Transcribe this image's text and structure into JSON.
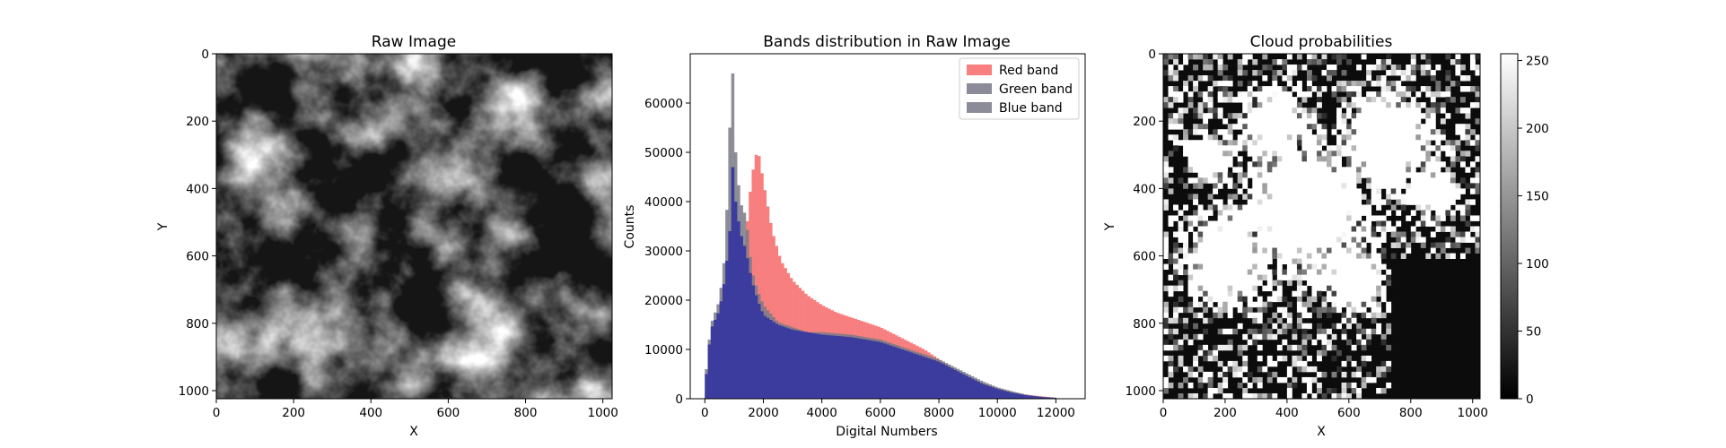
{
  "chart_data": [
    {
      "type": "heatmap",
      "title": "Raw Image",
      "xlabel": "X",
      "ylabel": "Y",
      "xlim": [
        0,
        1024
      ],
      "ylim": [
        1024,
        0
      ],
      "xticks": [
        "0",
        "200",
        "400",
        "600",
        "800",
        "1000"
      ],
      "yticks": [
        "0",
        "200",
        "400",
        "600",
        "800",
        "1000"
      ],
      "colormap": "gray",
      "grid": false
    },
    {
      "type": "bar",
      "title": "Bands distribution in Raw Image",
      "xlabel": "Digital Numbers",
      "ylabel": "Counts",
      "xlim": [
        -500,
        13000
      ],
      "ylim": [
        0,
        70000
      ],
      "xticks": [
        "0",
        "2000",
        "4000",
        "6000",
        "8000",
        "10000",
        "12000"
      ],
      "yticks": [
        "0",
        "10000",
        "20000",
        "30000",
        "40000",
        "50000",
        "60000"
      ],
      "legend_position": "top-right",
      "grid": false,
      "series": [
        {
          "name": "Red band",
          "color": "#f87f7f",
          "points": [
            [
              0,
              0
            ],
            [
              300,
              8000
            ],
            [
              600,
              17000
            ],
            [
              900,
              20000
            ],
            [
              1200,
              26000
            ],
            [
              1400,
              33000
            ],
            [
              1600,
              45000
            ],
            [
              1800,
              51000
            ],
            [
              2000,
              44000
            ],
            [
              2300,
              34000
            ],
            [
              2600,
              28000
            ],
            [
              3000,
              24000
            ],
            [
              3500,
              21000
            ],
            [
              4000,
              19000
            ],
            [
              4500,
              17500
            ],
            [
              5000,
              16500
            ],
            [
              5500,
              15500
            ],
            [
              6000,
              14500
            ],
            [
              6500,
              13000
            ],
            [
              7000,
              11500
            ],
            [
              7500,
              10000
            ],
            [
              8000,
              8000
            ],
            [
              8500,
              6000
            ],
            [
              9000,
              4500
            ],
            [
              9500,
              3000
            ],
            [
              10000,
              2000
            ],
            [
              10500,
              1300
            ],
            [
              11000,
              800
            ],
            [
              11500,
              500
            ],
            [
              12000,
              200
            ]
          ]
        },
        {
          "name": "Green band",
          "color": "#8c8c98",
          "points": [
            [
              0,
              3000
            ],
            [
              200,
              15000
            ],
            [
              500,
              20000
            ],
            [
              700,
              30000
            ],
            [
              850,
              55000
            ],
            [
              950,
              66000
            ],
            [
              1050,
              50000
            ],
            [
              1200,
              40000
            ],
            [
              1400,
              37000
            ],
            [
              1600,
              26000
            ],
            [
              1800,
              22000
            ],
            [
              2000,
              19000
            ],
            [
              2500,
              15500
            ],
            [
              3000,
              14500
            ],
            [
              3500,
              13500
            ],
            [
              4000,
              13500
            ],
            [
              5000,
              13000
            ],
            [
              6000,
              12000
            ],
            [
              7000,
              10000
            ],
            [
              8000,
              8000
            ],
            [
              8500,
              6500
            ],
            [
              9000,
              5000
            ],
            [
              9500,
              3500
            ],
            [
              10000,
              2300
            ],
            [
              10500,
              1500
            ],
            [
              11000,
              800
            ],
            [
              11500,
              400
            ],
            [
              12000,
              200
            ]
          ]
        },
        {
          "name": "Blue band",
          "color": "#8c8c98",
          "points": [
            [
              0,
              2000
            ],
            [
              200,
              14000
            ],
            [
              500,
              18000
            ],
            [
              700,
              25000
            ],
            [
              850,
              34000
            ],
            [
              950,
              47000
            ],
            [
              1050,
              40000
            ],
            [
              1200,
              34000
            ],
            [
              1400,
              30000
            ],
            [
              1600,
              24000
            ],
            [
              1800,
              20000
            ],
            [
              2000,
              17000
            ],
            [
              2500,
              15000
            ],
            [
              3000,
              14000
            ],
            [
              3500,
              13500
            ],
            [
              4000,
              13000
            ],
            [
              5000,
              12500
            ],
            [
              6000,
              11500
            ],
            [
              7000,
              9500
            ],
            [
              8000,
              7500
            ],
            [
              8500,
              6000
            ],
            [
              9000,
              4500
            ],
            [
              9500,
              3000
            ],
            [
              10000,
              2000
            ],
            [
              10500,
              1200
            ],
            [
              11000,
              700
            ],
            [
              11500,
              350
            ],
            [
              12000,
              150
            ]
          ]
        }
      ]
    },
    {
      "type": "heatmap",
      "title": "Cloud probabilities",
      "xlabel": "X",
      "ylabel": "Y",
      "xlim": [
        0,
        1024
      ],
      "ylim": [
        1024,
        0
      ],
      "xticks": [
        "0",
        "200",
        "400",
        "600",
        "800",
        "1000"
      ],
      "yticks": [
        "0",
        "200",
        "400",
        "600",
        "800",
        "1000"
      ],
      "colormap": "gray",
      "colorbar": {
        "range": [
          0,
          255
        ],
        "ticks": [
          "0",
          "50",
          "100",
          "150",
          "200",
          "250"
        ]
      },
      "grid": false
    }
  ]
}
